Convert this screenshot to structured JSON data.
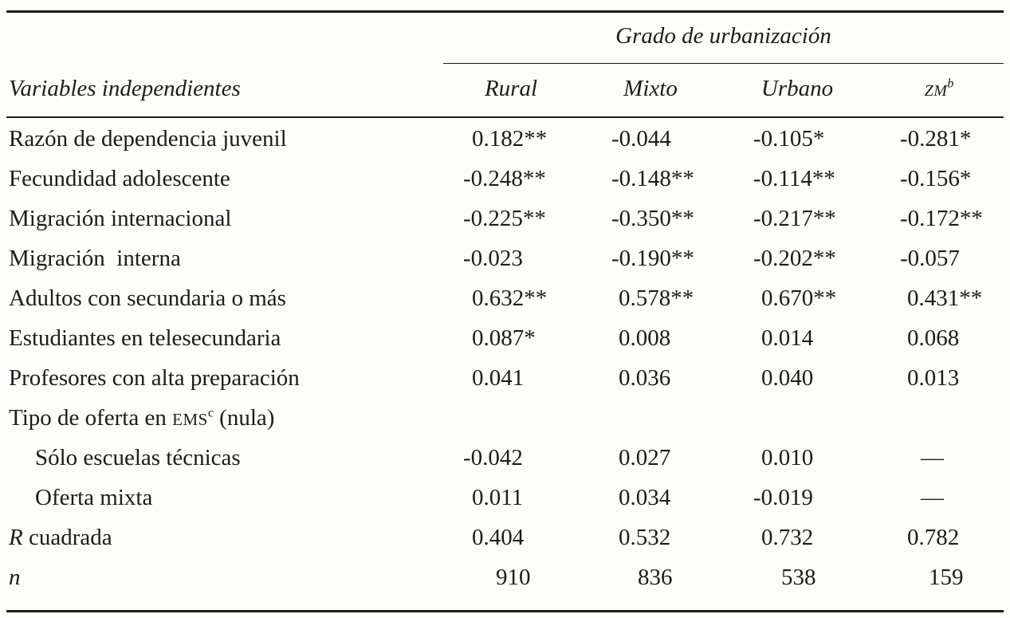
{
  "header": {
    "group_title": "Grado de urbanización",
    "variables_label": "Variables independientes",
    "columns": [
      "Rural",
      "Mixto",
      "Urbano",
      "ZM"
    ],
    "zm_superscript": "b"
  },
  "rows": [
    {
      "label": "Razón de dependencia juvenil",
      "values": [
        "0.182**",
        "-0.044",
        "-0.105*",
        "-0.281*"
      ]
    },
    {
      "label": "Fecundidad adolescente",
      "values": [
        "-0.248**",
        "-0.148**",
        "-0.114**",
        "-0.156*"
      ]
    },
    {
      "label": "Migración internacional",
      "values": [
        "-0.225**",
        "-0.350**",
        "-0.217**",
        "-0.172**"
      ]
    },
    {
      "label": "Migración  interna",
      "values": [
        "-0.023",
        "-0.190**",
        "-0.202**",
        "-0.057"
      ]
    },
    {
      "label": "Adultos con secundaria o más",
      "values": [
        "0.632**",
        "0.578**",
        "0.670**",
        "0.431**"
      ]
    },
    {
      "label": "Estudiantes en telesecundaria",
      "values": [
        "0.087*",
        "0.008",
        "0.014",
        "0.068"
      ]
    },
    {
      "label": "Profesores con alta preparación",
      "values": [
        "0.041",
        "0.036",
        "0.040",
        "0.013"
      ]
    },
    {
      "label_prefix": "Tipo de oferta en",
      "label_abbrev": "EMS",
      "label_sup": "c",
      "label_suffix": "(nula)",
      "values": []
    },
    {
      "label": "Sólo escuelas técnicas",
      "indent": true,
      "values": [
        "-0.042",
        "0.027",
        "0.010",
        "—"
      ]
    },
    {
      "label": "Oferta mixta",
      "indent": true,
      "values": [
        "0.011",
        "0.034",
        "-0.019",
        "—"
      ]
    },
    {
      "label_italic": "R",
      "label": " cuadrada",
      "values": [
        "0.404",
        "0.532",
        "0.732",
        "0.782"
      ]
    },
    {
      "label_italic": "n",
      "values": [
        "910",
        "836",
        "538",
        "159"
      ]
    }
  ]
}
